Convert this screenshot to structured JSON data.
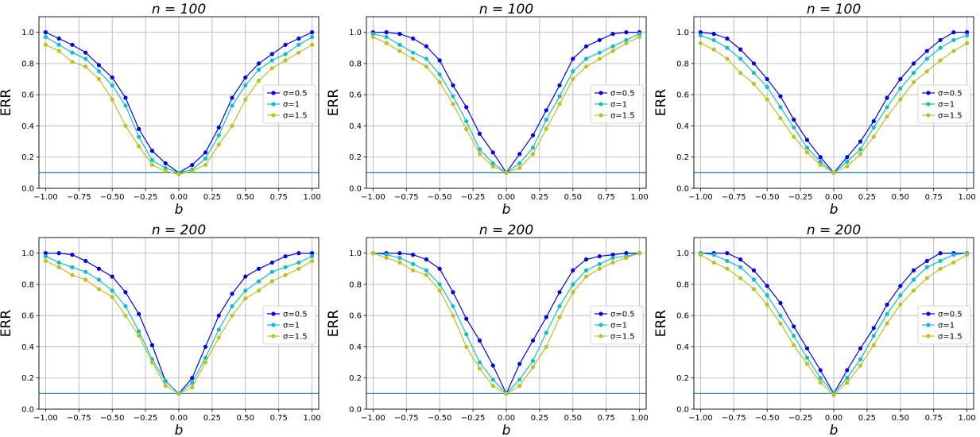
{
  "chart_data": [
    {
      "type": "line",
      "title": "n = 100",
      "xlabel": "b",
      "ylabel": "ERR",
      "xlim": [
        -1.05,
        1.05
      ],
      "ylim": [
        0.0,
        1.1
      ],
      "xticks": [
        "−1.00",
        "−0.75",
        "−0.50",
        "−0.25",
        "0.00",
        "0.25",
        "0.50",
        "0.75",
        "1.00"
      ],
      "yticks": [
        "0.0",
        "0.2",
        "0.4",
        "0.6",
        "0.8",
        "1.0"
      ],
      "grid": true,
      "legend_position": "right",
      "reference_line": 0.1,
      "x": [
        -1.0,
        -0.9,
        -0.8,
        -0.7,
        -0.6,
        -0.5,
        -0.4,
        -0.3,
        -0.2,
        -0.1,
        0.0,
        0.1,
        0.2,
        0.3,
        0.4,
        0.5,
        0.6,
        0.7,
        0.8,
        0.9,
        1.0
      ],
      "series": [
        {
          "name": "σ=0.5",
          "color": "#0000ee",
          "values": [
            1.0,
            0.96,
            0.92,
            0.87,
            0.79,
            0.71,
            0.58,
            0.38,
            0.24,
            0.16,
            0.1,
            0.15,
            0.23,
            0.39,
            0.58,
            0.71,
            0.8,
            0.86,
            0.92,
            0.96,
            1.0
          ]
        },
        {
          "name": "σ=1",
          "color": "#10c0c8",
          "values": [
            0.97,
            0.92,
            0.87,
            0.83,
            0.75,
            0.66,
            0.53,
            0.33,
            0.18,
            0.13,
            0.1,
            0.12,
            0.19,
            0.34,
            0.53,
            0.66,
            0.76,
            0.82,
            0.86,
            0.92,
            0.97
          ]
        },
        {
          "name": "σ=1.5",
          "color": "#c0c020",
          "values": [
            0.92,
            0.88,
            0.81,
            0.78,
            0.7,
            0.57,
            0.4,
            0.27,
            0.15,
            0.11,
            0.09,
            0.11,
            0.15,
            0.28,
            0.4,
            0.57,
            0.69,
            0.77,
            0.82,
            0.87,
            0.92
          ]
        }
      ]
    },
    {
      "type": "line",
      "title": "n = 100",
      "xlabel": "b",
      "ylabel": "ERR",
      "xlim": [
        -1.05,
        1.05
      ],
      "ylim": [
        0.0,
        1.1
      ],
      "xticks": [
        "−1.00",
        "−0.75",
        "−0.50",
        "−0.25",
        "0.00",
        "0.25",
        "0.50",
        "0.75",
        "1.00"
      ],
      "yticks": [
        "0.0",
        "0.2",
        "0.4",
        "0.6",
        "0.8",
        "1.0"
      ],
      "grid": true,
      "legend_position": "right",
      "reference_line": 0.1,
      "x": [
        -1.0,
        -0.9,
        -0.8,
        -0.7,
        -0.6,
        -0.5,
        -0.4,
        -0.3,
        -0.2,
        -0.1,
        0.0,
        0.1,
        0.2,
        0.3,
        0.4,
        0.5,
        0.6,
        0.7,
        0.8,
        0.9,
        1.0
      ],
      "series": [
        {
          "name": "σ=0.5",
          "color": "#0000ee",
          "values": [
            1.0,
            1.0,
            0.99,
            0.96,
            0.91,
            0.82,
            0.66,
            0.52,
            0.35,
            0.23,
            0.1,
            0.22,
            0.34,
            0.5,
            0.66,
            0.83,
            0.91,
            0.95,
            0.99,
            1.0,
            1.0
          ]
        },
        {
          "name": "σ=1",
          "color": "#10c0c8",
          "values": [
            0.99,
            0.97,
            0.92,
            0.87,
            0.83,
            0.73,
            0.59,
            0.43,
            0.25,
            0.16,
            0.1,
            0.16,
            0.26,
            0.44,
            0.59,
            0.75,
            0.83,
            0.87,
            0.91,
            0.95,
            0.99
          ]
        },
        {
          "name": "σ=1.5",
          "color": "#c0c020",
          "values": [
            0.97,
            0.93,
            0.88,
            0.83,
            0.78,
            0.68,
            0.54,
            0.38,
            0.22,
            0.14,
            0.1,
            0.13,
            0.22,
            0.38,
            0.54,
            0.7,
            0.78,
            0.83,
            0.88,
            0.93,
            0.97
          ]
        }
      ]
    },
    {
      "type": "line",
      "title": "n = 100",
      "xlabel": "b",
      "ylabel": "ERR",
      "xlim": [
        -1.05,
        1.05
      ],
      "ylim": [
        0.0,
        1.1
      ],
      "xticks": [
        "−1.00",
        "−0.75",
        "−0.50",
        "−0.25",
        "0.00",
        "0.25",
        "0.50",
        "0.75",
        "1.00"
      ],
      "yticks": [
        "0.0",
        "0.2",
        "0.4",
        "0.6",
        "0.8",
        "1.0"
      ],
      "grid": true,
      "legend_position": "right",
      "reference_line": 0.1,
      "x": [
        -1.0,
        -0.9,
        -0.8,
        -0.7,
        -0.6,
        -0.5,
        -0.4,
        -0.3,
        -0.2,
        -0.1,
        0.0,
        0.1,
        0.2,
        0.3,
        0.4,
        0.5,
        0.6,
        0.7,
        0.8,
        0.9,
        1.0
      ],
      "series": [
        {
          "name": "σ=0.5",
          "color": "#0000ee",
          "values": [
            1.0,
            0.99,
            0.96,
            0.89,
            0.8,
            0.7,
            0.59,
            0.44,
            0.31,
            0.2,
            0.1,
            0.2,
            0.3,
            0.43,
            0.58,
            0.7,
            0.8,
            0.88,
            0.95,
            1.0,
            1.0
          ]
        },
        {
          "name": "σ=1",
          "color": "#10c0c8",
          "values": [
            0.98,
            0.95,
            0.9,
            0.83,
            0.74,
            0.65,
            0.52,
            0.39,
            0.26,
            0.17,
            0.1,
            0.17,
            0.25,
            0.39,
            0.52,
            0.64,
            0.74,
            0.83,
            0.9,
            0.95,
            0.98
          ]
        },
        {
          "name": "σ=1.5",
          "color": "#c0c020",
          "values": [
            0.93,
            0.89,
            0.83,
            0.74,
            0.67,
            0.57,
            0.45,
            0.33,
            0.23,
            0.15,
            0.1,
            0.14,
            0.22,
            0.33,
            0.46,
            0.57,
            0.68,
            0.75,
            0.82,
            0.88,
            0.93
          ]
        }
      ]
    },
    {
      "type": "line",
      "title": "n = 200",
      "xlabel": "b",
      "ylabel": "ERR",
      "xlim": [
        -1.05,
        1.05
      ],
      "ylim": [
        0.0,
        1.1
      ],
      "xticks": [
        "−1.00",
        "−0.75",
        "−0.50",
        "−0.25",
        "0.00",
        "0.25",
        "0.50",
        "0.75",
        "1.00"
      ],
      "yticks": [
        "0.0",
        "0.2",
        "0.4",
        "0.6",
        "0.8",
        "1.0"
      ],
      "grid": true,
      "legend_position": "right",
      "reference_line": 0.1,
      "x": [
        -1.0,
        -0.9,
        -0.8,
        -0.7,
        -0.6,
        -0.5,
        -0.4,
        -0.3,
        -0.2,
        -0.1,
        0.0,
        0.1,
        0.2,
        0.3,
        0.4,
        0.5,
        0.6,
        0.7,
        0.8,
        0.9,
        1.0
      ],
      "series": [
        {
          "name": "σ=0.5",
          "color": "#0000ee",
          "values": [
            1.0,
            1.0,
            0.99,
            0.95,
            0.9,
            0.85,
            0.75,
            0.61,
            0.41,
            0.18,
            0.1,
            0.2,
            0.4,
            0.6,
            0.74,
            0.85,
            0.9,
            0.94,
            0.98,
            1.0,
            1.0
          ]
        },
        {
          "name": "σ=1",
          "color": "#10c0c8",
          "values": [
            0.98,
            0.94,
            0.91,
            0.88,
            0.83,
            0.76,
            0.66,
            0.5,
            0.32,
            0.18,
            0.1,
            0.17,
            0.33,
            0.51,
            0.66,
            0.76,
            0.82,
            0.88,
            0.91,
            0.94,
            0.98
          ]
        },
        {
          "name": "σ=1.5",
          "color": "#c0c020",
          "values": [
            0.95,
            0.91,
            0.86,
            0.83,
            0.77,
            0.72,
            0.6,
            0.47,
            0.3,
            0.15,
            0.1,
            0.14,
            0.3,
            0.46,
            0.6,
            0.71,
            0.76,
            0.82,
            0.86,
            0.9,
            0.95
          ]
        }
      ]
    },
    {
      "type": "line",
      "title": "n = 200",
      "xlabel": "b",
      "ylabel": "ERR",
      "xlim": [
        -1.05,
        1.05
      ],
      "ylim": [
        0.0,
        1.1
      ],
      "xticks": [
        "−1.00",
        "−0.75",
        "−0.50",
        "−0.25",
        "0.00",
        "0.25",
        "0.50",
        "0.75",
        "1.00"
      ],
      "yticks": [
        "0.0",
        "0.2",
        "0.4",
        "0.6",
        "0.8",
        "1.0"
      ],
      "grid": true,
      "legend_position": "right",
      "reference_line": 0.1,
      "x": [
        -1.0,
        -0.9,
        -0.8,
        -0.7,
        -0.6,
        -0.5,
        -0.4,
        -0.3,
        -0.2,
        -0.1,
        0.0,
        0.1,
        0.2,
        0.3,
        0.4,
        0.5,
        0.6,
        0.7,
        0.8,
        0.9,
        1.0
      ],
      "series": [
        {
          "name": "σ=0.5",
          "color": "#0000ee",
          "values": [
            1.0,
            1.0,
            1.0,
            0.99,
            0.96,
            0.9,
            0.75,
            0.58,
            0.44,
            0.28,
            0.1,
            0.29,
            0.44,
            0.59,
            0.75,
            0.89,
            0.96,
            0.98,
            0.99,
            1.0,
            1.0
          ]
        },
        {
          "name": "σ=1",
          "color": "#10c0c8",
          "values": [
            1.0,
            0.99,
            0.97,
            0.93,
            0.89,
            0.8,
            0.66,
            0.48,
            0.3,
            0.19,
            0.1,
            0.19,
            0.31,
            0.49,
            0.66,
            0.8,
            0.89,
            0.93,
            0.97,
            0.98,
            1.0
          ]
        },
        {
          "name": "σ=1.5",
          "color": "#c0c020",
          "values": [
            1.0,
            0.97,
            0.94,
            0.89,
            0.86,
            0.76,
            0.6,
            0.4,
            0.26,
            0.15,
            0.1,
            0.15,
            0.27,
            0.4,
            0.59,
            0.75,
            0.85,
            0.9,
            0.94,
            0.97,
            1.0
          ]
        }
      ]
    },
    {
      "type": "line",
      "title": "n = 200",
      "xlabel": "b",
      "ylabel": "ERR",
      "xlim": [
        -1.05,
        1.05
      ],
      "ylim": [
        0.0,
        1.1
      ],
      "xticks": [
        "−1.00",
        "−0.75",
        "−0.50",
        "−0.25",
        "0.00",
        "0.25",
        "0.50",
        "0.75",
        "1.00"
      ],
      "yticks": [
        "0.0",
        "0.2",
        "0.4",
        "0.6",
        "0.8",
        "1.0"
      ],
      "grid": true,
      "legend_position": "right",
      "reference_line": 0.1,
      "x": [
        -1.0,
        -0.9,
        -0.8,
        -0.7,
        -0.6,
        -0.5,
        -0.4,
        -0.3,
        -0.2,
        -0.1,
        0.0,
        0.1,
        0.2,
        0.3,
        0.4,
        0.5,
        0.6,
        0.7,
        0.8,
        0.9,
        1.0
      ],
      "series": [
        {
          "name": "σ=0.5",
          "color": "#0000ee",
          "values": [
            1.0,
            1.0,
            1.0,
            0.96,
            0.89,
            0.79,
            0.68,
            0.53,
            0.39,
            0.25,
            0.1,
            0.25,
            0.39,
            0.52,
            0.67,
            0.79,
            0.89,
            0.95,
            1.0,
            1.0,
            1.0
          ]
        },
        {
          "name": "σ=1",
          "color": "#10c0c8",
          "values": [
            1.0,
            0.99,
            0.95,
            0.91,
            0.83,
            0.73,
            0.6,
            0.47,
            0.33,
            0.2,
            0.1,
            0.2,
            0.32,
            0.47,
            0.61,
            0.73,
            0.83,
            0.91,
            0.95,
            0.99,
            1.0
          ]
        },
        {
          "name": "σ=1.5",
          "color": "#c0c020",
          "values": [
            0.99,
            0.94,
            0.9,
            0.84,
            0.77,
            0.67,
            0.55,
            0.41,
            0.29,
            0.17,
            0.09,
            0.17,
            0.28,
            0.41,
            0.55,
            0.67,
            0.76,
            0.84,
            0.9,
            0.94,
            0.99
          ]
        }
      ]
    }
  ]
}
